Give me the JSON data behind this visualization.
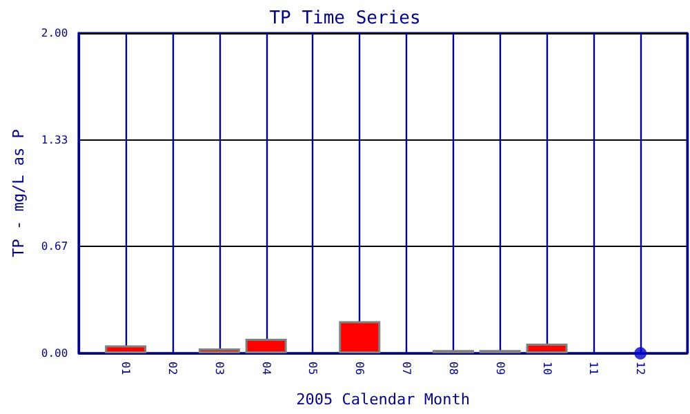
{
  "chart_data": {
    "type": "bar",
    "title": "TP Time Series",
    "xlabel": "2005 Calendar Month",
    "ylabel": "TP - mg/L as P",
    "categories": [
      "01",
      "02",
      "03",
      "04",
      "05",
      "06",
      "07",
      "08",
      "09",
      "10",
      "11",
      "12"
    ],
    "series": [
      {
        "type": "bar",
        "color": "#ff0000",
        "values": [
          0.05,
          0,
          0.03,
          0.09,
          0,
          0.2,
          0,
          0.02,
          0.02,
          0.06,
          0,
          null
        ]
      },
      {
        "type": "scatter",
        "color": "#0000cc",
        "x": [
          "12"
        ],
        "values": [
          0
        ]
      }
    ],
    "ylim": [
      0,
      2
    ],
    "yticks": [
      {
        "value": 0,
        "label": "0.00"
      },
      {
        "value": 0.67,
        "label": "0.67"
      },
      {
        "value": 1.33,
        "label": "1.33"
      },
      {
        "value": 2,
        "label": "2.00"
      }
    ],
    "grid": true,
    "marker": "circle"
  }
}
